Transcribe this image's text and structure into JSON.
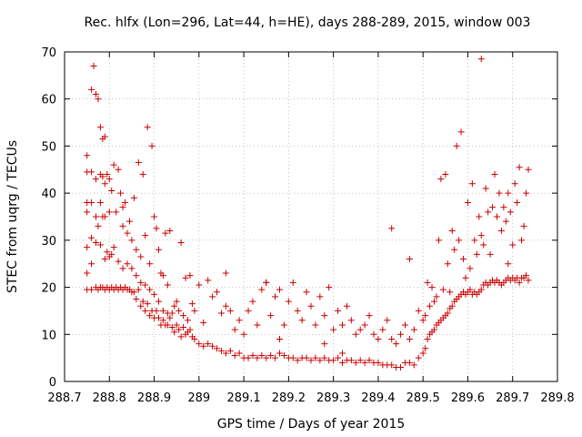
{
  "chart_data": {
    "type": "scatter",
    "title": "Rec. hlfx (Lon=296, Lat=44, h=HE), days 288-289, 2015, window 003",
    "xlabel": "GPS time / Days of year 2015",
    "ylabel": "STEC from uqrg / TECUs",
    "xlim": [
      288.7,
      289.8
    ],
    "ylim": [
      0,
      70
    ],
    "xticks": [
      288.7,
      288.8,
      288.9,
      289,
      289.1,
      289.2,
      289.3,
      289.4,
      289.5,
      289.6,
      289.7,
      289.8
    ],
    "xtick_labels": [
      "288.7",
      "288.8",
      "288.9",
      "289",
      "289.1",
      "289.2",
      "289.3",
      "289.4",
      "289.5",
      "289.6",
      "289.7",
      "289.8"
    ],
    "yticks": [
      0,
      10,
      20,
      30,
      40,
      50,
      60,
      70
    ],
    "ytick_labels": [
      "0",
      "10",
      "20",
      "30",
      "40",
      "50",
      "60",
      "70"
    ],
    "grid": true,
    "marker": "+",
    "marker_color": "#cc0000",
    "series": [
      {
        "x": [
          288.75,
          288.75,
          288.75,
          288.75,
          288.75,
          288.75,
          288.75,
          288.76,
          288.76,
          288.76,
          288.76,
          288.76,
          288.76,
          288.77,
          288.77,
          288.77,
          288.77,
          288.77,
          288.775,
          288.775,
          288.775,
          288.78,
          288.78,
          288.78,
          288.78,
          288.78,
          288.785,
          288.785,
          288.785,
          288.785,
          288.79,
          288.79,
          288.79,
          288.79,
          288.79,
          288.795,
          288.795,
          288.795,
          288.8,
          288.8,
          288.8,
          288.8,
          288.805,
          288.805,
          288.805,
          288.81,
          288.81,
          288.81,
          288.815,
          288.815,
          288.82,
          288.82,
          288.82,
          288.825,
          288.825,
          288.83,
          288.83,
          288.83,
          288.835,
          288.835,
          288.84,
          288.84,
          288.84,
          288.845,
          288.845,
          288.85,
          288.85,
          288.85,
          288.855,
          288.855,
          288.86,
          288.86,
          288.86,
          288.865,
          288.865,
          288.87,
          288.87,
          288.87,
          288.875,
          288.875,
          288.88,
          288.88,
          288.88,
          288.885,
          288.885,
          288.89,
          288.89,
          288.89,
          288.895,
          288.895,
          288.9,
          288.9,
          288.9,
          288.905,
          288.905,
          288.91,
          288.91,
          288.91,
          288.915,
          288.915,
          288.92,
          288.92,
          288.92,
          288.925,
          288.925,
          288.93,
          288.93,
          288.93,
          288.935,
          288.935,
          288.94,
          288.94,
          288.945,
          288.945,
          288.95,
          288.95,
          288.955,
          288.955,
          288.96,
          288.96,
          288.965,
          288.965,
          288.97,
          288.97,
          288.975,
          288.975,
          288.98,
          288.98,
          288.985,
          288.985,
          288.99,
          288.99,
          289.0,
          289.0,
          289.01,
          289.01,
          289.02,
          289.02,
          289.03,
          289.03,
          289.04,
          289.04,
          289.05,
          289.05,
          289.06,
          289.06,
          289.07,
          289.07,
          289.08,
          289.08,
          289.09,
          289.09,
          289.1,
          289.1,
          289.11,
          289.11,
          289.12,
          289.12,
          289.13,
          289.13,
          289.14,
          289.14,
          289.15,
          289.15,
          289.16,
          289.16,
          289.17,
          289.17,
          289.18,
          289.18,
          289.19,
          289.19,
          289.2,
          289.2,
          289.21,
          289.21,
          289.22,
          289.22,
          289.23,
          289.23,
          289.24,
          289.24,
          289.25,
          289.25,
          289.26,
          289.26,
          289.27,
          289.27,
          289.28,
          289.28,
          289.29,
          289.29,
          289.3,
          289.3,
          289.31,
          289.31,
          289.32,
          289.32,
          289.33,
          289.33,
          289.34,
          289.34,
          289.35,
          289.35,
          289.36,
          289.36,
          289.37,
          289.37,
          289.38,
          289.38,
          289.39,
          289.39,
          289.4,
          289.4,
          289.41,
          289.41,
          289.42,
          289.42,
          289.43,
          289.43,
          289.44,
          289.44,
          289.45,
          289.45,
          289.46,
          289.46,
          289.47,
          289.47,
          289.48,
          289.48,
          289.49,
          289.49,
          289.5,
          289.5,
          289.505,
          289.505,
          289.51,
          289.51,
          289.515,
          289.515,
          289.52,
          289.52,
          289.525,
          289.525,
          289.53,
          289.53,
          289.535,
          289.535,
          289.54,
          289.54,
          289.545,
          289.545,
          289.55,
          289.55,
          289.555,
          289.555,
          289.56,
          289.56,
          289.565,
          289.565,
          289.57,
          289.57,
          289.575,
          289.575,
          289.58,
          289.58,
          289.585,
          289.585,
          289.59,
          289.59,
          289.595,
          289.595,
          289.6,
          289.6,
          289.605,
          289.605,
          289.61,
          289.61,
          289.615,
          289.615,
          289.62,
          289.62,
          289.625,
          289.625,
          289.63,
          289.63,
          289.635,
          289.635,
          289.64,
          289.64,
          289.645,
          289.645,
          289.65,
          289.65,
          289.655,
          289.655,
          289.66,
          289.66,
          289.665,
          289.665,
          289.67,
          289.67,
          289.675,
          289.675,
          289.68,
          289.68,
          289.685,
          289.685,
          289.69,
          289.69,
          289.695,
          289.695,
          289.7,
          289.7,
          289.705,
          289.705,
          289.71,
          289.71,
          289.715,
          289.715,
          289.72,
          289.72,
          289.725,
          289.725,
          289.73,
          289.73,
          289.735,
          289.735,
          288.765,
          288.83,
          289.63,
          289.69,
          289.32,
          289.28,
          289.18,
          289.43,
          289.47,
          289.06,
          289.15
        ],
        "y": [
          19.5,
          23,
          28.5,
          36,
          38,
          44.5,
          48,
          19.5,
          25,
          30.5,
          38,
          44.5,
          62,
          20,
          29.5,
          35,
          43,
          61,
          19.5,
          33,
          60,
          20,
          29,
          38,
          44,
          54,
          20,
          35,
          43.5,
          51.5,
          19.5,
          26,
          35,
          42,
          52,
          20,
          27.5,
          44,
          19.5,
          26.5,
          36,
          43,
          20,
          27,
          40.5,
          19.5,
          28.5,
          46,
          20,
          36,
          19.5,
          25.5,
          45,
          20,
          40,
          19.5,
          24,
          33,
          20,
          38,
          19.5,
          25,
          31.5,
          19.5,
          34,
          19,
          24,
          30,
          19,
          39,
          17.5,
          22.5,
          28,
          19.5,
          46.5,
          16,
          21,
          26.5,
          17,
          44,
          15,
          20.5,
          31,
          16.5,
          54,
          14,
          19.5,
          25,
          15,
          50,
          13.5,
          18.5,
          35,
          15,
          32.5,
          13.5,
          17,
          28,
          12,
          23,
          13,
          15,
          22.5,
          12,
          31.5,
          12,
          14.5,
          20.5,
          13.5,
          32,
          11.5,
          14.5,
          10.5,
          16,
          12,
          17,
          11,
          15,
          9.5,
          29.5,
          11.5,
          14,
          10,
          22,
          10.5,
          13,
          11,
          22.5,
          9.5,
          16.5,
          9,
          15,
          8,
          20.5,
          7.5,
          12.5,
          8,
          21.5,
          7.5,
          18,
          7,
          19,
          6.5,
          14.5,
          6,
          23,
          6.5,
          15,
          5.5,
          11,
          6,
          13,
          5,
          10,
          5,
          15,
          5.5,
          17,
          5,
          12,
          5.5,
          19.5,
          5,
          21,
          5.5,
          14,
          5,
          18,
          6,
          19.5,
          5.5,
          12,
          5,
          17,
          5,
          21,
          4.5,
          15,
          5,
          13,
          5,
          19,
          4.5,
          16,
          5,
          12,
          4.5,
          18,
          5,
          14,
          4.5,
          20,
          4.5,
          11,
          5,
          15,
          4,
          12,
          4.5,
          16,
          4.5,
          13,
          4,
          10,
          4.5,
          11,
          4,
          12,
          4.5,
          14,
          4,
          10,
          4,
          9,
          3.5,
          11,
          3.5,
          13,
          3.5,
          9,
          3,
          8,
          3,
          10,
          4,
          12,
          4,
          9,
          3.5,
          11,
          5,
          15,
          6,
          13,
          7,
          14,
          9,
          21,
          10,
          16,
          10.5,
          20,
          11,
          17,
          12,
          18,
          12.5,
          30,
          13,
          43,
          13.5,
          19.5,
          14,
          44,
          14.5,
          25,
          15.5,
          19,
          16,
          32,
          17,
          28,
          17.5,
          50,
          18,
          30,
          18.5,
          53,
          19,
          26,
          18.5,
          22,
          19,
          38,
          19.5,
          24,
          18.5,
          42,
          19,
          30,
          18.5,
          27,
          19,
          35,
          19.5,
          31,
          20.5,
          29,
          21,
          41,
          20.5,
          36,
          21,
          27,
          21.5,
          37,
          21,
          44,
          21.5,
          35,
          21,
          40,
          20.5,
          32,
          21,
          37,
          21.5,
          34,
          22,
          40,
          21.5,
          36,
          22,
          29,
          21.5,
          42,
          22,
          38,
          21,
          45.5,
          22,
          30,
          22,
          33,
          22.5,
          40,
          21.5,
          45,
          67,
          37,
          68.5,
          25,
          6,
          8,
          9,
          32.5,
          26,
          16,
          21
        ]
      }
    ]
  }
}
